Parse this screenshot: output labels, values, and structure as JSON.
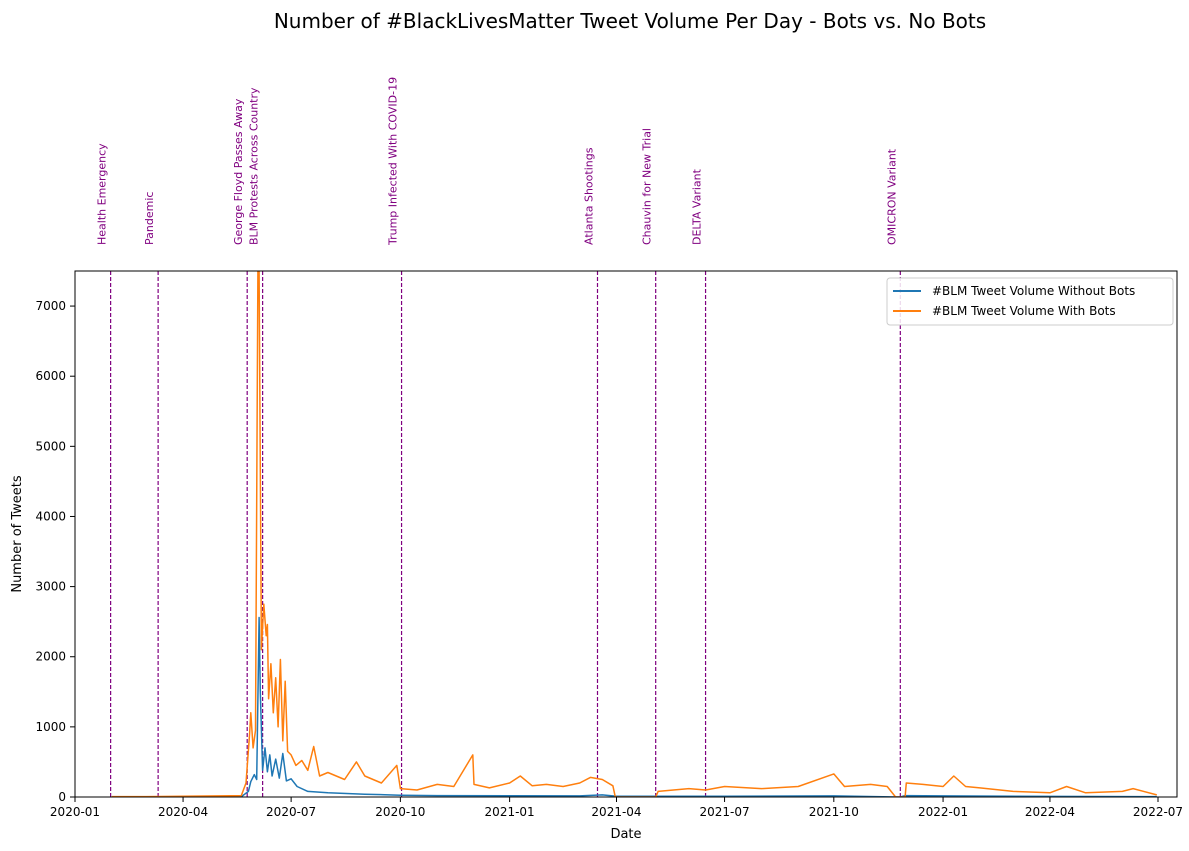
{
  "chart_data": {
    "type": "line",
    "title": "Number of #BlackLivesMatter Tweet Volume Per Day - Bots vs. No Bots",
    "xlabel": "Date",
    "ylabel": "Number of Tweets",
    "xlim": [
      "2020-01-01",
      "2022-07-17"
    ],
    "ylim": [
      0,
      7500
    ],
    "x_ticks": [
      "2020-01",
      "2020-04",
      "2020-07",
      "2020-10",
      "2021-01",
      "2021-04",
      "2021-07",
      "2021-10",
      "2022-01",
      "2022-04",
      "2022-07"
    ],
    "y_ticks": [
      0,
      1000,
      2000,
      3000,
      4000,
      5000,
      6000,
      7000
    ],
    "grid": false,
    "legend_position": "upper right",
    "series": [
      {
        "name": "#BLM Tweet Volume Without Bots",
        "color": "#1f77b4",
        "points": [
          [
            "2020-02-01",
            0
          ],
          [
            "2020-04-01",
            2
          ],
          [
            "2020-05-20",
            4
          ],
          [
            "2020-05-26",
            80
          ],
          [
            "2020-05-28",
            220
          ],
          [
            "2020-05-31",
            320
          ],
          [
            "2020-06-02",
            250
          ],
          [
            "2020-06-04",
            2560
          ],
          [
            "2020-06-05",
            1500
          ],
          [
            "2020-06-07",
            380
          ],
          [
            "2020-06-09",
            700
          ],
          [
            "2020-06-11",
            360
          ],
          [
            "2020-06-13",
            600
          ],
          [
            "2020-06-15",
            300
          ],
          [
            "2020-06-18",
            540
          ],
          [
            "2020-06-21",
            270
          ],
          [
            "2020-06-24",
            620
          ],
          [
            "2020-06-27",
            230
          ],
          [
            "2020-07-01",
            260
          ],
          [
            "2020-07-06",
            150
          ],
          [
            "2020-07-15",
            80
          ],
          [
            "2020-08-01",
            60
          ],
          [
            "2020-09-01",
            40
          ],
          [
            "2020-10-01",
            25
          ],
          [
            "2020-11-01",
            20
          ],
          [
            "2021-01-01",
            18
          ],
          [
            "2021-03-01",
            15
          ],
          [
            "2021-03-20",
            30
          ],
          [
            "2021-04-01",
            10
          ],
          [
            "2021-07-01",
            12
          ],
          [
            "2021-10-01",
            15
          ],
          [
            "2021-11-26",
            0
          ],
          [
            "2021-11-30",
            20
          ],
          [
            "2022-01-01",
            15
          ],
          [
            "2022-04-01",
            8
          ],
          [
            "2022-06-30",
            5
          ]
        ]
      },
      {
        "name": "#BLM Tweet Volume With Bots",
        "color": "#ff7f0e",
        "points": [
          [
            "2020-02-01",
            5
          ],
          [
            "2020-03-01",
            5
          ],
          [
            "2020-04-01",
            10
          ],
          [
            "2020-05-01",
            15
          ],
          [
            "2020-05-20",
            20
          ],
          [
            "2020-05-24",
            200
          ],
          [
            "2020-05-27",
            900
          ],
          [
            "2020-05-28",
            1200
          ],
          [
            "2020-05-30",
            700
          ],
          [
            "2020-06-01",
            950
          ],
          [
            "2020-06-03",
            7500
          ],
          [
            "2020-06-04",
            7500
          ],
          [
            "2020-06-06",
            2100
          ],
          [
            "2020-06-08",
            2750
          ],
          [
            "2020-06-10",
            2300
          ],
          [
            "2020-06-11",
            2460
          ],
          [
            "2020-06-12",
            1400
          ],
          [
            "2020-06-14",
            1900
          ],
          [
            "2020-06-16",
            1200
          ],
          [
            "2020-06-18",
            1700
          ],
          [
            "2020-06-20",
            1000
          ],
          [
            "2020-06-22",
            1960
          ],
          [
            "2020-06-24",
            800
          ],
          [
            "2020-06-26",
            1650
          ],
          [
            "2020-06-28",
            650
          ],
          [
            "2020-07-01",
            600
          ],
          [
            "2020-07-05",
            450
          ],
          [
            "2020-07-10",
            520
          ],
          [
            "2020-07-15",
            380
          ],
          [
            "2020-07-20",
            720
          ],
          [
            "2020-07-25",
            300
          ],
          [
            "2020-08-01",
            350
          ],
          [
            "2020-08-15",
            250
          ],
          [
            "2020-08-25",
            500
          ],
          [
            "2020-09-01",
            300
          ],
          [
            "2020-09-15",
            200
          ],
          [
            "2020-09-28",
            450
          ],
          [
            "2020-10-01",
            120
          ],
          [
            "2020-10-15",
            100
          ],
          [
            "2020-11-01",
            180
          ],
          [
            "2020-11-15",
            150
          ],
          [
            "2020-12-01",
            600
          ],
          [
            "2020-12-02",
            180
          ],
          [
            "2020-12-15",
            130
          ],
          [
            "2021-01-01",
            200
          ],
          [
            "2021-01-10",
            300
          ],
          [
            "2021-01-20",
            160
          ],
          [
            "2021-02-01",
            180
          ],
          [
            "2021-02-15",
            150
          ],
          [
            "2021-03-01",
            200
          ],
          [
            "2021-03-10",
            280
          ],
          [
            "2021-03-20",
            250
          ],
          [
            "2021-03-29",
            160
          ],
          [
            "2021-03-31",
            0
          ],
          [
            "2021-05-04",
            0
          ],
          [
            "2021-05-06",
            80
          ],
          [
            "2021-06-01",
            120
          ],
          [
            "2021-06-15",
            100
          ],
          [
            "2021-07-01",
            150
          ],
          [
            "2021-08-01",
            120
          ],
          [
            "2021-09-01",
            150
          ],
          [
            "2021-10-01",
            330
          ],
          [
            "2021-10-10",
            150
          ],
          [
            "2021-11-01",
            180
          ],
          [
            "2021-11-15",
            150
          ],
          [
            "2021-11-22",
            0
          ],
          [
            "2021-11-30",
            0
          ],
          [
            "2021-12-01",
            200
          ],
          [
            "2021-12-15",
            180
          ],
          [
            "2022-01-01",
            150
          ],
          [
            "2022-01-10",
            300
          ],
          [
            "2022-01-20",
            150
          ],
          [
            "2022-02-01",
            130
          ],
          [
            "2022-03-01",
            80
          ],
          [
            "2022-04-01",
            60
          ],
          [
            "2022-04-15",
            150
          ],
          [
            "2022-05-01",
            60
          ],
          [
            "2022-06-01",
            80
          ],
          [
            "2022-06-10",
            120
          ],
          [
            "2022-06-30",
            30
          ]
        ]
      }
    ],
    "events": [
      {
        "date": "2020-01-31",
        "label": "Health Emergency"
      },
      {
        "date": "2020-03-11",
        "label": "Pandemic"
      },
      {
        "date": "2020-05-25",
        "label": "George Floyd Passes Away"
      },
      {
        "date": "2020-06-07",
        "label": "BLM Protests Across Country"
      },
      {
        "date": "2020-10-02",
        "label": "Trump Infected With COVID-19"
      },
      {
        "date": "2021-03-16",
        "label": "Atlanta Shootings"
      },
      {
        "date": "2021-05-04",
        "label": "Chauvin for New Trial"
      },
      {
        "date": "2021-06-15",
        "label": "DELTA Variant"
      },
      {
        "date": "2021-11-26",
        "label": "OMICRON Variant"
      }
    ],
    "event_line_color": "#800080"
  }
}
